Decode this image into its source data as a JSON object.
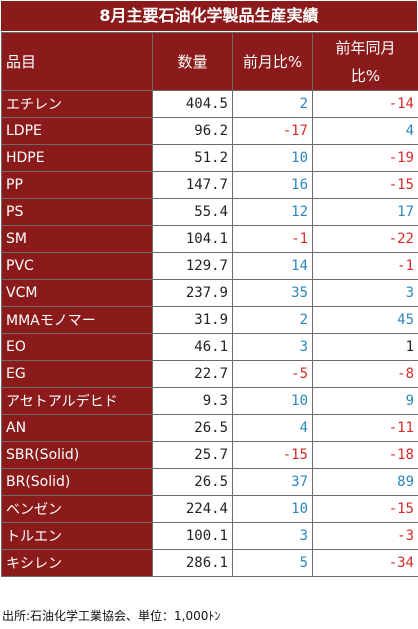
{
  "title": "8月主要石油化学製品生産実績",
  "headers": {
    "item": "品目",
    "volume": "数量",
    "mom": "前月比%",
    "yoy_line1": "前年同月",
    "yoy_line2": "比%"
  },
  "rows": [
    {
      "name": "エチレン",
      "volume": "404.5",
      "mom": "2",
      "yoy": "-14"
    },
    {
      "name": "LDPE",
      "volume": "96.2",
      "mom": "-17",
      "yoy": "4"
    },
    {
      "name": "HDPE",
      "volume": "51.2",
      "mom": "10",
      "yoy": "-19"
    },
    {
      "name": "PP",
      "volume": "147.7",
      "mom": "16",
      "yoy": "-15"
    },
    {
      "name": "PS",
      "volume": "55.4",
      "mom": "12",
      "yoy": "17"
    },
    {
      "name": "SM",
      "volume": "104.1",
      "mom": "-1",
      "yoy": "-22"
    },
    {
      "name": "PVC",
      "volume": "129.7",
      "mom": "14",
      "yoy": "-1"
    },
    {
      "name": "VCM",
      "volume": "237.9",
      "mom": "35",
      "yoy": "3"
    },
    {
      "name": "MMAモノマー",
      "volume": "31.9",
      "mom": "2",
      "yoy": "45"
    },
    {
      "name": "EO",
      "volume": "46.1",
      "mom": "3",
      "yoy": "1"
    },
    {
      "name": "EG",
      "volume": "22.7",
      "mom": "-5",
      "yoy": "-8"
    },
    {
      "name": "アセトアルデヒド",
      "volume": "9.3",
      "mom": "10",
      "yoy": "9"
    },
    {
      "name": "AN",
      "volume": "26.5",
      "mom": "4",
      "yoy": "-11"
    },
    {
      "name": "SBR(Solid)",
      "volume": "25.7",
      "mom": "-15",
      "yoy": "-18"
    },
    {
      "name": "BR(Solid)",
      "volume": "26.5",
      "mom": "37",
      "yoy": "89"
    },
    {
      "name": "ベンゼン",
      "volume": "224.4",
      "mom": "10",
      "yoy": "-15"
    },
    {
      "name": "トルエン",
      "volume": "100.1",
      "mom": "3",
      "yoy": "-3"
    },
    {
      "name": "キシレン",
      "volume": "286.1",
      "mom": "5",
      "yoy": "-34"
    }
  ],
  "source": "出所:石油化学工業協会、単位：1,000ﾄﾝ",
  "colors": {
    "header_bg": "#8b1a1a",
    "positive": "#2e86c1",
    "negative": "#d62b2b",
    "neutral_pos": "#222222"
  }
}
